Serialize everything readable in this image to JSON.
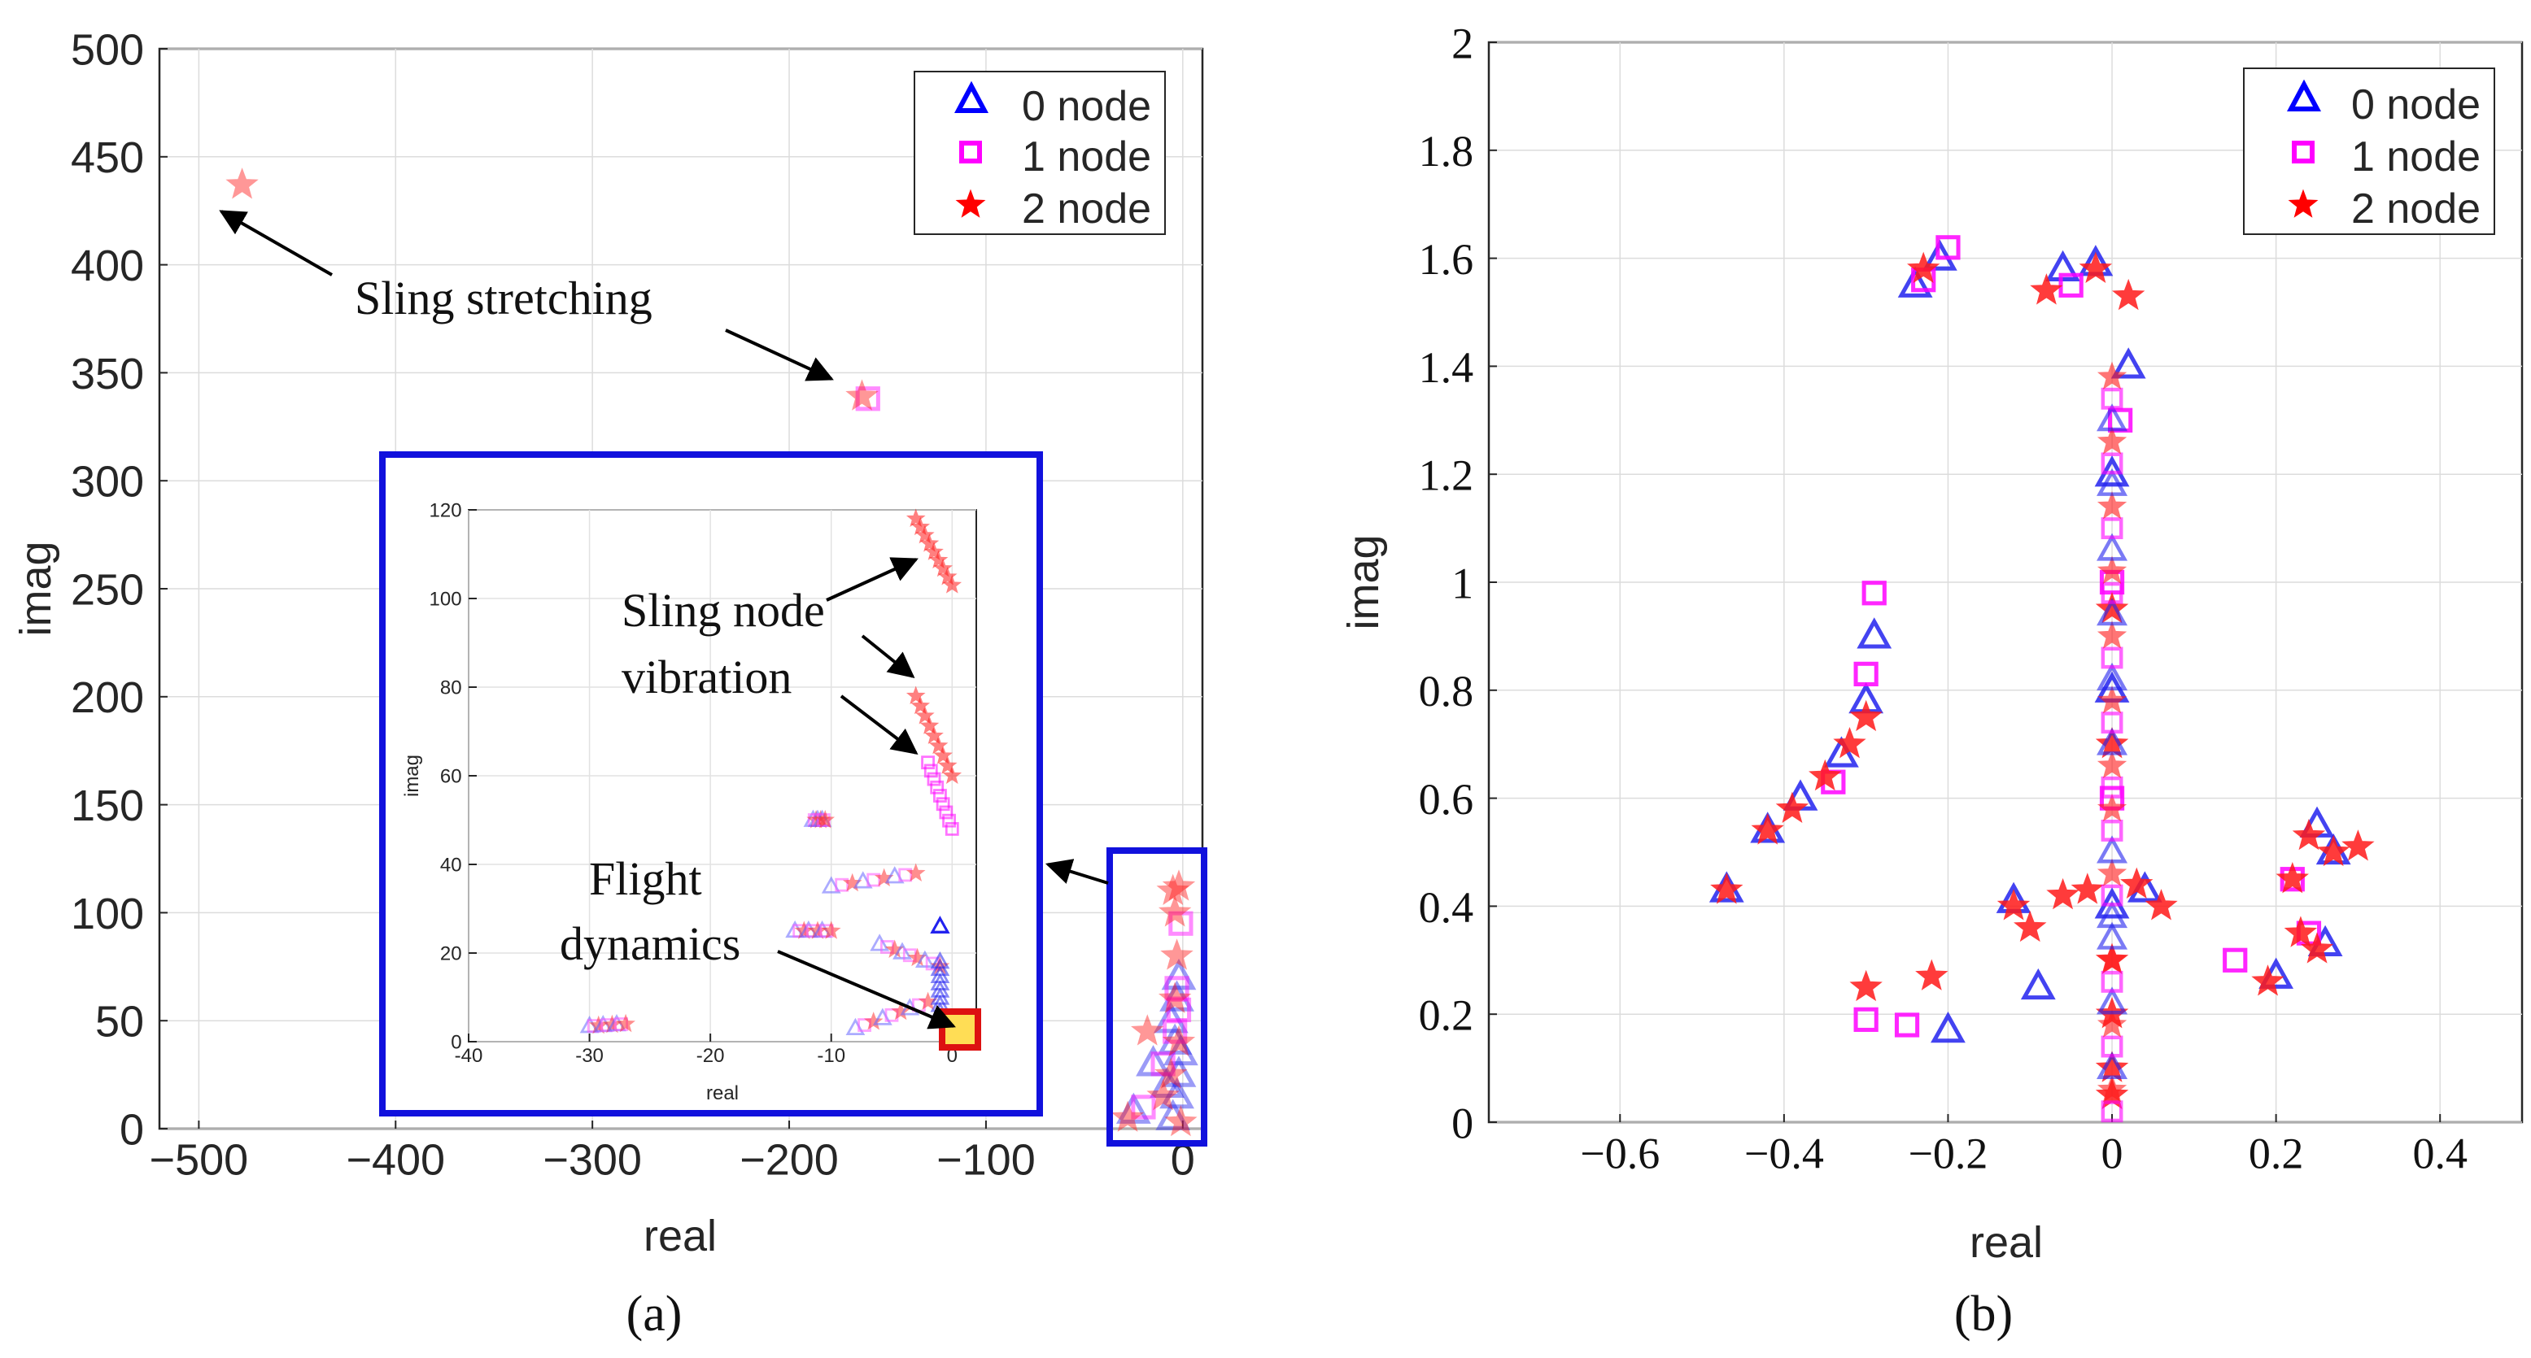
{
  "chart_data": [
    {
      "panel": "a",
      "type": "scatter",
      "caption": "(a)",
      "xlabel": "real",
      "ylabel": "imag",
      "xlim": [
        -520,
        10
      ],
      "ylim": [
        0,
        500
      ],
      "xticks": [
        -500,
        -400,
        -300,
        -200,
        -100,
        0
      ],
      "xtick_labels": [
        "−500",
        "−400",
        "−300",
        "−200",
        "−100",
        "0"
      ],
      "yticks": [
        0,
        50,
        100,
        150,
        200,
        250,
        300,
        350,
        400,
        450,
        500
      ],
      "grid": true,
      "legend": {
        "position": "top-right",
        "entries": [
          "0 node",
          "1 node",
          "2 node"
        ]
      },
      "series": [
        {
          "name": "0 node",
          "marker": "triangle",
          "color": "#0000ff",
          "points": [
            [
              -5,
              5
            ],
            [
              -3,
              15
            ],
            [
              -2,
              25
            ],
            [
              -1,
              35
            ],
            [
              -4,
              40
            ],
            [
              -6,
              50
            ],
            [
              -3,
              60
            ],
            [
              -2,
              70
            ],
            [
              -25,
              8
            ],
            [
              -15,
              30
            ],
            [
              -8,
              20
            ]
          ]
        },
        {
          "name": "1 node",
          "marker": "square",
          "color": "#ff00ff",
          "points": [
            [
              -160,
              338
            ],
            [
              -4,
              45
            ],
            [
              -2,
              55
            ],
            [
              -3,
              65
            ],
            [
              -20,
              10
            ],
            [
              -10,
              30
            ],
            [
              -1,
              95
            ]
          ]
        },
        {
          "name": "2 node",
          "marker": "star",
          "color": "#ff0000",
          "points": [
            [
              -478,
              437
            ],
            [
              -163,
              339
            ],
            [
              -5,
              110
            ],
            [
              -4,
              100
            ],
            [
              -3,
              80
            ],
            [
              -4,
              60
            ],
            [
              -2,
              40
            ],
            [
              -6,
              25
            ],
            [
              -28,
              5
            ],
            [
              -10,
              15
            ],
            [
              -2,
              112
            ],
            [
              -18,
              45
            ],
            [
              -1,
              3
            ]
          ]
        }
      ],
      "annotations": [
        {
          "text": "Sling stretching",
          "points_to": [
            [
              -478,
              437
            ],
            [
              -163,
              339
            ]
          ]
        }
      ],
      "inset": {
        "xlabel": "real",
        "ylabel": "imag",
        "xlim": [
          -40,
          2
        ],
        "ylim": [
          0,
          120
        ],
        "xticks": [
          -40,
          -30,
          -20,
          -10,
          0
        ],
        "xtick_labels": [
          "-40",
          "-30",
          "-20",
          "-10",
          "0"
        ],
        "yticks": [
          0,
          20,
          40,
          60,
          80,
          100,
          120
        ],
        "annotations": [
          {
            "text_lines": [
              "Sling node",
              "vibration"
            ]
          },
          {
            "text_lines": [
              "Flight",
              "dynamics"
            ]
          }
        ],
        "clusters": [
          {
            "series": "2 node",
            "from": [
              -3,
              118
            ],
            "to": [
              0,
              103
            ]
          },
          {
            "series": "2 node",
            "from": [
              -3,
              78
            ],
            "to": [
              0,
              60
            ]
          },
          {
            "series": "1 node",
            "from": [
              -2,
              63
            ],
            "to": [
              0,
              48
            ]
          },
          {
            "series": "mixed",
            "from": [
              -30,
              3.5
            ],
            "to": [
              -27,
              4
            ]
          },
          {
            "series": "mixed",
            "from": [
              -11.5,
              50
            ],
            "to": [
              -10.5,
              50
            ]
          },
          {
            "series": "mixed",
            "from": [
              -13,
              25
            ],
            "to": [
              -10,
              25
            ]
          },
          {
            "series": "mixed",
            "from": [
              -10,
              35
            ],
            "to": [
              -3,
              38
            ]
          },
          {
            "series": "mixed",
            "from": [
              -6,
              22
            ],
            "to": [
              -1,
              17
            ]
          },
          {
            "series": "mixed",
            "from": [
              -8,
              3
            ],
            "to": [
              -2,
              9
            ]
          },
          {
            "series": "0 node",
            "from": [
              -1,
              26
            ],
            "to": [
              -1,
              26
            ]
          },
          {
            "series": "0 node",
            "from": [
              -1,
              18
            ],
            "to": [
              -1,
              5
            ]
          }
        ]
      }
    },
    {
      "panel": "b",
      "type": "scatter",
      "caption": "(b)",
      "xlabel": "real",
      "ylabel": "imag",
      "xlim": [
        -0.76,
        0.5
      ],
      "ylim": [
        0,
        2
      ],
      "xticks": [
        -0.6,
        -0.4,
        -0.2,
        0,
        0.2,
        0.4
      ],
      "xtick_labels": [
        "−0.6",
        "−0.4",
        "−0.2",
        "0",
        "0.2",
        "0.4"
      ],
      "yticks": [
        0,
        0.2,
        0.4,
        0.6,
        0.8,
        1,
        1.2,
        1.4,
        1.6,
        1.8,
        2
      ],
      "ytick_labels": [
        "0",
        "0.2",
        "0.4",
        "0.6",
        "0.8",
        "1",
        "1.2",
        "1.4",
        "1.6",
        "1.8",
        "2"
      ],
      "grid": true,
      "legend": {
        "position": "top-right",
        "entries": [
          "0 node",
          "1 node",
          "2 node"
        ]
      },
      "series": [
        {
          "name": "0 node",
          "marker": "triangle",
          "color": "#0000ff",
          "points": [
            [
              -0.47,
              0.43
            ],
            [
              -0.42,
              0.54
            ],
            [
              -0.38,
              0.6
            ],
            [
              -0.33,
              0.68
            ],
            [
              -0.3,
              0.78
            ],
            [
              -0.29,
              0.9
            ],
            [
              -0.21,
              1.6
            ],
            [
              -0.24,
              1.55
            ],
            [
              -0.06,
              1.58
            ],
            [
              -0.02,
              1.59
            ],
            [
              0,
              0.4
            ],
            [
              0,
              0.8
            ],
            [
              0,
              1.2
            ],
            [
              0.02,
              1.4
            ],
            [
              0.25,
              0.55
            ],
            [
              0.27,
              0.5
            ],
            [
              0.26,
              0.33
            ],
            [
              0.2,
              0.27
            ],
            [
              -0.2,
              0.17
            ],
            [
              -0.09,
              0.25
            ],
            [
              0.04,
              0.43
            ],
            [
              -0.12,
              0.41
            ]
          ]
        },
        {
          "name": "1 node",
          "marker": "square",
          "color": "#ff00ff",
          "points": [
            [
              -0.34,
              0.63
            ],
            [
              -0.3,
              0.83
            ],
            [
              -0.29,
              0.98
            ],
            [
              -0.23,
              1.56
            ],
            [
              -0.2,
              1.62
            ],
            [
              -0.05,
              1.55
            ],
            [
              0,
              0.6
            ],
            [
              0,
              1.0
            ],
            [
              0.01,
              1.3
            ],
            [
              0.22,
              0.45
            ],
            [
              0.24,
              0.35
            ],
            [
              -0.3,
              0.19
            ],
            [
              -0.25,
              0.18
            ],
            [
              0.15,
              0.3
            ]
          ]
        },
        {
          "name": "2 node",
          "marker": "star",
          "color": "#ff0000",
          "points": [
            [
              -0.47,
              0.43
            ],
            [
              -0.42,
              0.54
            ],
            [
              -0.39,
              0.58
            ],
            [
              -0.35,
              0.64
            ],
            [
              -0.32,
              0.7
            ],
            [
              -0.3,
              0.75
            ],
            [
              -0.3,
              0.25
            ],
            [
              -0.22,
              0.27
            ],
            [
              -0.12,
              0.4
            ],
            [
              -0.1,
              0.36
            ],
            [
              -0.06,
              0.42
            ],
            [
              -0.03,
              0.43
            ],
            [
              0,
              0.3
            ],
            [
              0,
              0.2
            ],
            [
              0,
              0.1
            ],
            [
              0,
              0.05
            ],
            [
              0.03,
              0.44
            ],
            [
              0.06,
              0.4
            ],
            [
              0.19,
              0.26
            ],
            [
              0.22,
              0.45
            ],
            [
              0.24,
              0.53
            ],
            [
              0.27,
              0.5
            ],
            [
              0.3,
              0.51
            ],
            [
              0.23,
              0.35
            ],
            [
              0.25,
              0.32
            ],
            [
              -0.23,
              1.58
            ],
            [
              -0.08,
              1.54
            ],
            [
              0.02,
              1.53
            ],
            [
              -0.02,
              1.58
            ],
            [
              0,
              0.7
            ],
            [
              0,
              0.95
            ]
          ]
        }
      ]
    }
  ]
}
